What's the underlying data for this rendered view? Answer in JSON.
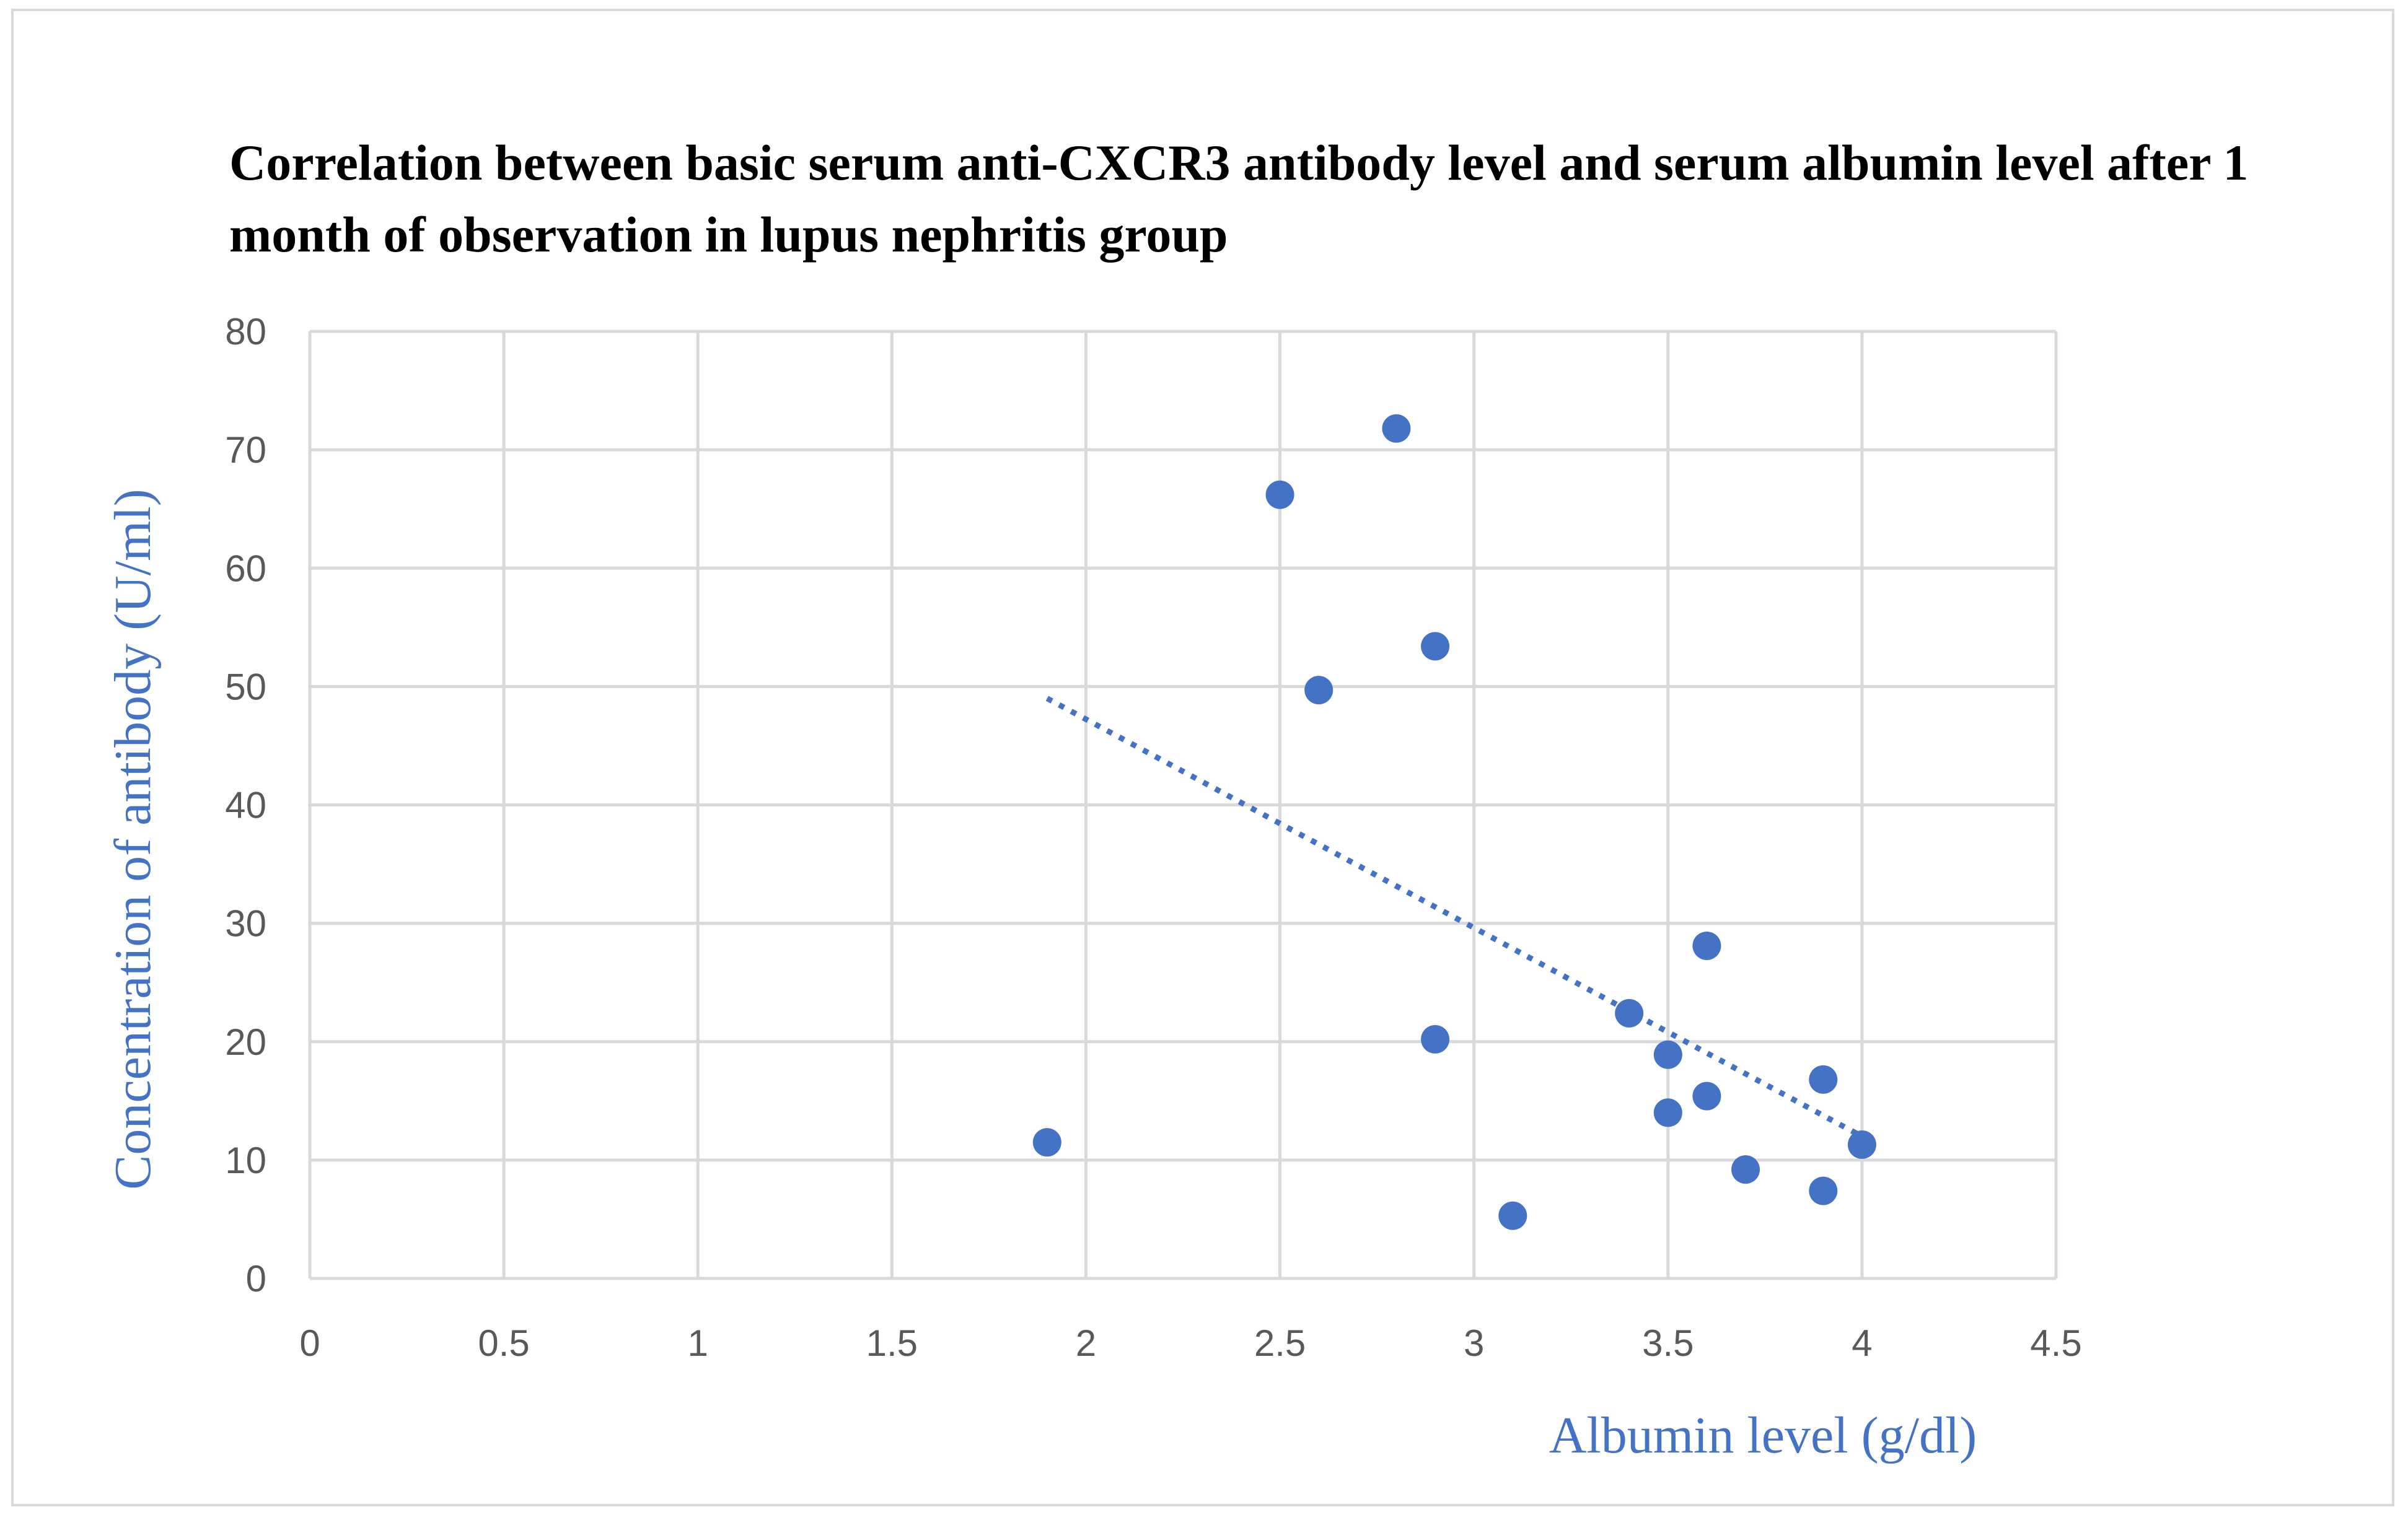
{
  "chart_data": {
    "type": "scatter",
    "title": "Correlation between basic serum anti-CXCR3 antibody level and serum albumin level after 1 month of observation in lupus nephritis group",
    "xlabel": "Albumin level (g/dl)",
    "ylabel": "Concentration of antibody (U/ml)",
    "xlim": [
      0,
      4.5
    ],
    "ylim": [
      0,
      80
    ],
    "x_ticks": [
      "0",
      "0.5",
      "1",
      "1.5",
      "2",
      "2.5",
      "3",
      "3.5",
      "4",
      "4.5"
    ],
    "y_ticks": [
      "0",
      "10",
      "20",
      "30",
      "40",
      "50",
      "60",
      "70",
      "80"
    ],
    "grid": true,
    "marker_color": "#4472c4",
    "series": [
      {
        "name": "Anti-CXCR3 antibody",
        "points": [
          {
            "x": 1.9,
            "y": 11.5
          },
          {
            "x": 2.5,
            "y": 66.2
          },
          {
            "x": 2.6,
            "y": 49.7
          },
          {
            "x": 2.8,
            "y": 71.8
          },
          {
            "x": 2.9,
            "y": 53.4
          },
          {
            "x": 2.9,
            "y": 20.2
          },
          {
            "x": 3.1,
            "y": 5.3
          },
          {
            "x": 3.4,
            "y": 22.4
          },
          {
            "x": 3.5,
            "y": 18.9
          },
          {
            "x": 3.5,
            "y": 14.0
          },
          {
            "x": 3.6,
            "y": 28.1
          },
          {
            "x": 3.6,
            "y": 15.4
          },
          {
            "x": 3.7,
            "y": 9.2
          },
          {
            "x": 3.9,
            "y": 16.8
          },
          {
            "x": 3.9,
            "y": 7.4
          },
          {
            "x": 4.0,
            "y": 11.3
          }
        ]
      }
    ],
    "trendline": {
      "type": "linear",
      "style": "dotted",
      "points": [
        {
          "x": 1.9,
          "y": 49.0
        },
        {
          "x": 4.0,
          "y": 12.0
        }
      ]
    }
  }
}
